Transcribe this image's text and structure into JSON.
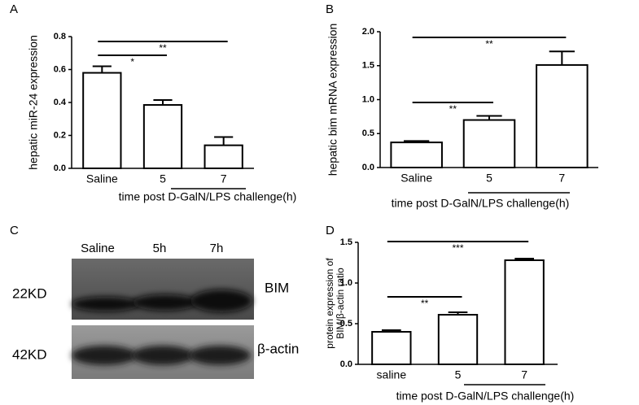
{
  "chart_data": [
    {
      "type": "bar",
      "panel": "A",
      "categories": [
        "Saline",
        "5",
        "7"
      ],
      "values": [
        0.58,
        0.385,
        0.14
      ],
      "errors": [
        0.04,
        0.03,
        0.05
      ],
      "ylabel": "hepatic miR-24 expression",
      "xlabel": "time post D-GalN/LPS challenge(h)",
      "ylim": [
        0,
        0.8
      ],
      "yticks": [
        {
          "value": 0,
          "label": "0.0"
        },
        0.2,
        0.4,
        0.6,
        0.8
      ],
      "significance": [
        {
          "between": [
            0,
            1
          ],
          "label": "*"
        },
        {
          "between": [
            0,
            2
          ],
          "label": "**"
        }
      ],
      "color": "#ffffff"
    },
    {
      "type": "bar",
      "panel": "B",
      "categories": [
        "Saline",
        "5",
        "7"
      ],
      "values": [
        0.37,
        0.7,
        1.51
      ],
      "errors": [
        0.02,
        0.06,
        0.2
      ],
      "ylabel": "hepatic bim mRNA expression",
      "xlabel": "time post D-GalN/LPS challenge(h)",
      "ylim": [
        0,
        2
      ],
      "yticks": [
        {
          "value": 0,
          "label": "0.0"
        },
        0.5,
        {
          "value": 1,
          "label": "1.0"
        },
        1.5,
        {
          "value": 2,
          "label": "2.0"
        }
      ],
      "significance": [
        {
          "between": [
            0,
            1
          ],
          "label": "**"
        },
        {
          "between": [
            0,
            2
          ],
          "label": "**"
        }
      ],
      "color": "#ffffff"
    },
    {
      "type": "bar",
      "panel": "D",
      "categories": [
        "saline",
        "5",
        "7"
      ],
      "values": [
        0.4,
        0.61,
        1.28
      ],
      "errors": [
        0.02,
        0.03,
        0.02
      ],
      "ylabel": [
        "protein expression of",
        "BIM/β-actin ratio"
      ],
      "xlabel": "time post D-GalN/LPS challenge(h)",
      "ylim": [
        0,
        1.5
      ],
      "yticks": [
        {
          "value": 0,
          "label": "0.0"
        },
        0.5,
        {
          "value": 1,
          "label": "1.0"
        },
        1.5
      ],
      "significance": [
        {
          "between": [
            0,
            1
          ],
          "label": "**"
        },
        {
          "between": [
            0,
            2
          ],
          "label": "***"
        }
      ],
      "color": "#ffffff"
    }
  ],
  "blot": {
    "panel": "C",
    "lanes": [
      "Saline",
      "5h",
      "7h"
    ],
    "bands": [
      {
        "size": "22KD",
        "protein": "BIM"
      },
      {
        "size": "42KD",
        "protein": "β-actin"
      }
    ]
  }
}
